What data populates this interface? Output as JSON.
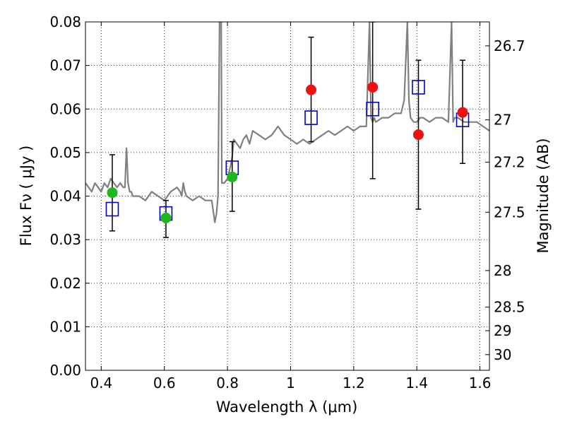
{
  "chart_data": {
    "type": "scatter",
    "xlabel": "Wavelength  λ (μm)",
    "ylabel": "Flux  Fν  ( μJy )",
    "ylabel_right": "Magnitude (AB)",
    "xlim": [
      0.35,
      1.63
    ],
    "ylim": [
      0.0,
      0.08
    ],
    "grid": true,
    "x_ticks": [
      0.4,
      0.6,
      0.8,
      1.0,
      1.2,
      1.4,
      1.6
    ],
    "x_tick_labels": [
      "0.4",
      "0.6",
      "0.8",
      "1",
      "1.2",
      "1.4",
      "1.6"
    ],
    "y_ticks": [
      0.0,
      0.01,
      0.02,
      0.03,
      0.04,
      0.05,
      0.06,
      0.07,
      0.08
    ],
    "y_tick_labels": [
      "0.00",
      "0.01",
      "0.02",
      "0.03",
      "0.04",
      "0.05",
      "0.06",
      "0.07",
      "0.08"
    ],
    "right_ticks": [
      {
        "label": "26.7",
        "flux": 0.0745
      },
      {
        "label": "27",
        "flux": 0.0575
      },
      {
        "label": "27.2",
        "flux": 0.0478
      },
      {
        "label": "27.5",
        "flux": 0.0363
      },
      {
        "label": "28",
        "flux": 0.0229
      },
      {
        "label": "28.5",
        "flux": 0.0145
      },
      {
        "label": "29",
        "flux": 0.0091
      },
      {
        "label": "30",
        "flux": 0.0036
      }
    ],
    "series": [
      {
        "kind": "line",
        "color": "#808080",
        "x": [
          0.35,
          0.36,
          0.37,
          0.38,
          0.39,
          0.4,
          0.41,
          0.42,
          0.43,
          0.44,
          0.45,
          0.46,
          0.47,
          0.475,
          0.48,
          0.485,
          0.49,
          0.495,
          0.5,
          0.52,
          0.54,
          0.56,
          0.58,
          0.6,
          0.62,
          0.64,
          0.65,
          0.655,
          0.66,
          0.665,
          0.67,
          0.69,
          0.71,
          0.73,
          0.75,
          0.76,
          0.765,
          0.77,
          0.775,
          0.78,
          0.782,
          0.79,
          0.8,
          0.81,
          0.815,
          0.82,
          0.83,
          0.84,
          0.85,
          0.86,
          0.87,
          0.88,
          0.9,
          0.92,
          0.94,
          0.96,
          0.98,
          1.0,
          1.02,
          1.04,
          1.06,
          1.08,
          1.1,
          1.12,
          1.14,
          1.16,
          1.18,
          1.2,
          1.22,
          1.24,
          1.25,
          1.255,
          1.26,
          1.265,
          1.27,
          1.29,
          1.31,
          1.33,
          1.35,
          1.36,
          1.37,
          1.375,
          1.38,
          1.39,
          1.4,
          1.41,
          1.42,
          1.44,
          1.46,
          1.48,
          1.5,
          1.51,
          1.515,
          1.52,
          1.53,
          1.55,
          1.57,
          1.59,
          1.61,
          1.63
        ],
        "y": [
          0.043,
          0.042,
          0.041,
          0.043,
          0.042,
          0.041,
          0.043,
          0.042,
          0.044,
          0.043,
          0.042,
          0.043,
          0.042,
          0.042,
          0.051,
          0.043,
          0.041,
          0.041,
          0.04,
          0.04,
          0.039,
          0.041,
          0.04,
          0.039,
          0.041,
          0.042,
          0.041,
          0.04,
          0.043,
          0.041,
          0.04,
          0.039,
          0.04,
          0.039,
          0.039,
          0.034,
          0.036,
          0.04,
          0.08,
          0.08,
          0.043,
          0.043,
          0.044,
          0.047,
          0.049,
          0.053,
          0.052,
          0.051,
          0.053,
          0.054,
          0.052,
          0.055,
          0.054,
          0.053,
          0.054,
          0.056,
          0.054,
          0.053,
          0.052,
          0.053,
          0.052,
          0.053,
          0.054,
          0.055,
          0.054,
          0.055,
          0.056,
          0.055,
          0.056,
          0.056,
          0.08,
          0.058,
          0.057,
          0.058,
          0.057,
          0.058,
          0.058,
          0.059,
          0.059,
          0.062,
          0.08,
          0.062,
          0.058,
          0.057,
          0.057,
          0.058,
          0.058,
          0.057,
          0.058,
          0.058,
          0.057,
          0.08,
          0.057,
          0.058,
          0.058,
          0.057,
          0.057,
          0.057,
          0.056,
          0.055
        ]
      },
      {
        "kind": "errorbar",
        "color": "#000000",
        "x": [
          0.435,
          0.605,
          0.815,
          1.065,
          1.26,
          1.405,
          1.545
        ],
        "low": [
          0.032,
          0.0305,
          0.0365,
          0.0525,
          0.044,
          0.037,
          0.0475
        ],
        "high": [
          0.0495,
          0.039,
          0.0525,
          0.0765,
          0.08,
          0.0712,
          0.0712
        ]
      },
      {
        "kind": "open-square",
        "color": "#0000cc",
        "x": [
          0.435,
          0.605,
          0.815,
          1.065,
          1.26,
          1.405,
          1.545
        ],
        "y": [
          0.037,
          0.036,
          0.0465,
          0.058,
          0.06,
          0.065,
          0.0575
        ]
      },
      {
        "kind": "filled-circle",
        "color": "#1db81d",
        "x": [
          0.435,
          0.605,
          0.815
        ],
        "y": [
          0.0408,
          0.035,
          0.0444
        ]
      },
      {
        "kind": "filled-circle",
        "color": "#ee1111",
        "x": [
          1.065,
          1.26,
          1.405,
          1.545
        ],
        "y": [
          0.0644,
          0.065,
          0.0541,
          0.0592
        ]
      }
    ]
  }
}
